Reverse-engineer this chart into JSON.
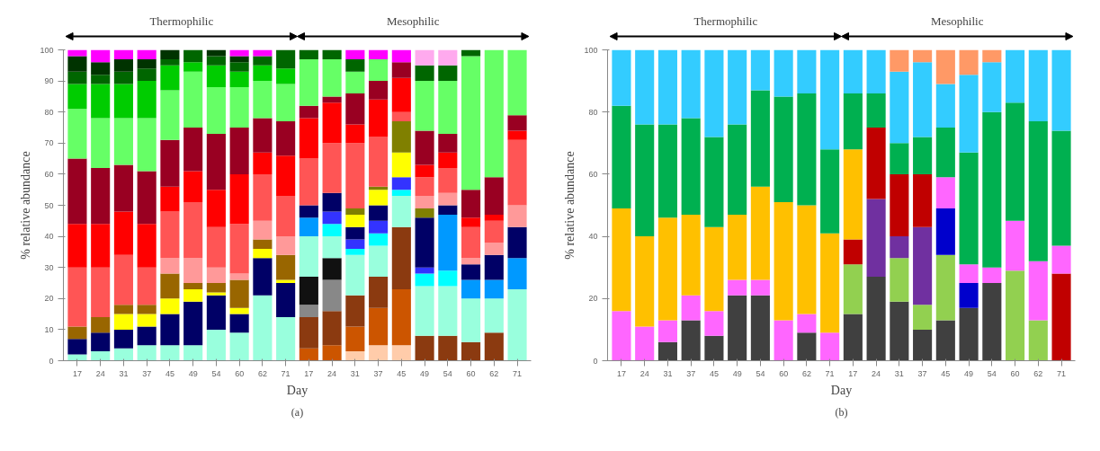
{
  "chart_data": [
    {
      "type": "bar",
      "stacked": true,
      "title": "(a)",
      "xlabel": "Day",
      "ylabel": "% relative abundance",
      "annotations": [
        "Thermophilic",
        "Mesophilic"
      ],
      "categories": [
        "17",
        "24",
        "31",
        "37",
        "45",
        "49",
        "54",
        "60",
        "62",
        "71",
        "17",
        "24",
        "31",
        "37",
        "45",
        "49",
        "54",
        "60",
        "62",
        "71"
      ],
      "ylim": [
        0,
        100
      ],
      "yticks": [
        0,
        10,
        20,
        30,
        40,
        50,
        60,
        70,
        80,
        90,
        100
      ],
      "series": [
        {
          "color": "#ffccaa",
          "values": [
            0,
            0,
            0,
            0,
            0,
            0,
            0,
            0,
            0,
            0,
            0,
            0,
            3,
            5,
            5,
            0,
            0,
            0,
            0,
            0
          ]
        },
        {
          "color": "#cc5500",
          "values": [
            0,
            0,
            0,
            0,
            0,
            0,
            0,
            0,
            0,
            0,
            4,
            5,
            8,
            12,
            18,
            0,
            0,
            0,
            0,
            0
          ]
        },
        {
          "color": "#8b3a10",
          "values": [
            0,
            0,
            0,
            0,
            0,
            0,
            0,
            0,
            0,
            0,
            10,
            11,
            10,
            10,
            20,
            8,
            8,
            6,
            9,
            0
          ]
        },
        {
          "color": "#888888",
          "values": [
            0,
            0,
            0,
            0,
            0,
            0,
            0,
            0,
            0,
            0,
            4,
            10,
            0,
            0,
            0,
            0,
            0,
            0,
            0,
            0
          ]
        },
        {
          "color": "#111111",
          "values": [
            0,
            0,
            0,
            0,
            0,
            0,
            0,
            0,
            0,
            0,
            9,
            7,
            0,
            0,
            0,
            0,
            0,
            0,
            0,
            0
          ]
        },
        {
          "color": "#99ffdd",
          "values": [
            2,
            3,
            4,
            5,
            5,
            5,
            10,
            9,
            21,
            14,
            13,
            7,
            13,
            10,
            10,
            16,
            16,
            14,
            11,
            23
          ]
        },
        {
          "color": "#00ffff",
          "values": [
            0,
            0,
            0,
            0,
            0,
            0,
            0,
            0,
            0,
            0,
            0,
            4,
            2,
            4,
            2,
            4,
            5,
            0,
            0,
            0
          ]
        },
        {
          "color": "#0099ff",
          "values": [
            0,
            0,
            0,
            0,
            0,
            0,
            0,
            0,
            0,
            0,
            6,
            0,
            0,
            0,
            0,
            0,
            18,
            6,
            6,
            10
          ]
        },
        {
          "color": "#3333ff",
          "values": [
            0,
            0,
            0,
            0,
            0,
            0,
            0,
            0,
            0,
            0,
            0,
            4,
            3,
            4,
            4,
            2,
            0,
            0,
            0,
            0
          ]
        },
        {
          "color": "#000066",
          "values": [
            5,
            6,
            6,
            6,
            10,
            14,
            11,
            6,
            12,
            11,
            4,
            6,
            4,
            5,
            0,
            16,
            3,
            5,
            8,
            10
          ]
        },
        {
          "color": "#ffff00",
          "values": [
            0,
            0,
            5,
            4,
            5,
            4,
            1,
            2,
            3,
            1,
            0,
            0,
            4,
            5,
            8,
            0,
            0,
            0,
            0,
            0
          ]
        },
        {
          "color": "#808000",
          "values": [
            0,
            0,
            0,
            0,
            0,
            0,
            0,
            0,
            0,
            0,
            0,
            0,
            2,
            1,
            10,
            3,
            0,
            0,
            0,
            0
          ]
        },
        {
          "color": "#996600",
          "values": [
            4,
            5,
            3,
            3,
            8,
            2,
            3,
            9,
            3,
            8,
            0,
            0,
            0,
            0,
            0,
            0,
            0,
            0,
            0,
            0
          ]
        },
        {
          "color": "#ff9999",
          "values": [
            0,
            0,
            0,
            0,
            5,
            8,
            5,
            2,
            6,
            6,
            0,
            0,
            0,
            0,
            0,
            4,
            4,
            2,
            4,
            7
          ]
        },
        {
          "color": "#ff5555",
          "values": [
            19,
            16,
            16,
            12,
            15,
            18,
            13,
            16,
            15,
            13,
            15,
            16,
            21,
            16,
            3,
            6,
            8,
            10,
            7,
            21
          ]
        },
        {
          "color": "#ff0000",
          "values": [
            14,
            14,
            14,
            14,
            8,
            10,
            12,
            16,
            7,
            13,
            13,
            13,
            6,
            12,
            11,
            4,
            5,
            3,
            2,
            3
          ]
        },
        {
          "color": "#990022",
          "values": [
            21,
            18,
            15,
            17,
            15,
            14,
            18,
            15,
            11,
            11,
            4,
            2,
            10,
            6,
            5,
            11,
            6,
            9,
            12,
            5
          ]
        },
        {
          "color": "#66ff66",
          "values": [
            16,
            16,
            15,
            17,
            16,
            18,
            15,
            13,
            12,
            12,
            15,
            12,
            7,
            7,
            0,
            16,
            17,
            43,
            41,
            21
          ]
        },
        {
          "color": "#00cc00",
          "values": [
            8,
            11,
            11,
            12,
            8,
            3,
            7,
            5,
            5,
            5,
            0,
            0,
            0,
            0,
            0,
            0,
            0,
            0,
            0,
            0
          ]
        },
        {
          "color": "#006600",
          "values": [
            4,
            3,
            4,
            4,
            2,
            4,
            3,
            3,
            3,
            6,
            3,
            3,
            4,
            0,
            0,
            5,
            5,
            2,
            0,
            0
          ]
        },
        {
          "color": "#003300",
          "values": [
            5,
            4,
            4,
            3,
            3,
            0,
            2,
            2,
            0,
            0,
            0,
            0,
            0,
            0,
            0,
            0,
            0,
            0,
            0,
            0
          ]
        },
        {
          "color": "#ffaaee",
          "values": [
            0,
            0,
            0,
            0,
            0,
            0,
            0,
            0,
            0,
            0,
            0,
            0,
            0,
            0,
            0,
            5,
            5,
            0,
            0,
            0
          ]
        },
        {
          "color": "#ff00ff",
          "values": [
            2,
            4,
            3,
            3,
            0,
            0,
            0,
            2,
            2,
            0,
            0,
            0,
            3,
            3,
            4,
            0,
            0,
            0,
            0,
            0
          ]
        }
      ]
    },
    {
      "type": "bar",
      "stacked": true,
      "title": "(b)",
      "xlabel": "Day",
      "ylabel": "% relative abundance",
      "annotations": [
        "Thermophilic",
        "Mesophilic"
      ],
      "categories": [
        "17",
        "24",
        "31",
        "37",
        "45",
        "49",
        "54",
        "60",
        "62",
        "71",
        "17",
        "24",
        "31",
        "37",
        "45",
        "49",
        "54",
        "60",
        "62",
        "71"
      ],
      "ylim": [
        0,
        100
      ],
      "yticks": [
        0,
        20,
        40,
        60,
        80,
        100
      ],
      "series": [
        {
          "color": "#404040",
          "values": [
            0,
            0,
            6,
            13,
            8,
            21,
            21,
            0,
            9,
            0,
            15,
            27,
            19,
            10,
            13,
            17,
            25,
            0,
            0,
            0
          ]
        },
        {
          "color": "#92d050",
          "values": [
            0,
            0,
            0,
            0,
            0,
            0,
            0,
            0,
            0,
            0,
            16,
            0,
            14,
            8,
            21,
            0,
            0,
            29,
            13,
            0
          ]
        },
        {
          "color": "#7030a0",
          "values": [
            0,
            0,
            0,
            0,
            0,
            0,
            0,
            0,
            0,
            0,
            0,
            25,
            7,
            25,
            0,
            0,
            0,
            0,
            0,
            0
          ]
        },
        {
          "color": "#c00000",
          "values": [
            0,
            0,
            0,
            0,
            0,
            0,
            0,
            0,
            0,
            0,
            8,
            23,
            20,
            17,
            0,
            0,
            0,
            0,
            0,
            28
          ]
        },
        {
          "color": "#0000cc",
          "values": [
            0,
            0,
            0,
            0,
            0,
            0,
            0,
            0,
            0,
            0,
            0,
            0,
            0,
            0,
            15,
            8,
            0,
            0,
            0,
            0
          ]
        },
        {
          "color": "#ff66ff",
          "values": [
            16,
            11,
            7,
            8,
            8,
            5,
            5,
            13,
            6,
            9,
            0,
            0,
            0,
            0,
            10,
            6,
            5,
            16,
            19,
            9
          ]
        },
        {
          "color": "#ffc000",
          "values": [
            33,
            29,
            33,
            26,
            27,
            21,
            30,
            38,
            35,
            32,
            29,
            0,
            0,
            0,
            0,
            0,
            0,
            0,
            0,
            0
          ]
        },
        {
          "color": "#00b050",
          "values": [
            33,
            36,
            30,
            31,
            29,
            29,
            31,
            34,
            36,
            27,
            18,
            11,
            10,
            12,
            16,
            36,
            50,
            38,
            45,
            37
          ]
        },
        {
          "color": "#33ccff",
          "values": [
            18,
            24,
            24,
            22,
            28,
            24,
            13,
            15,
            14,
            32,
            14,
            14,
            23,
            24,
            14,
            25,
            16,
            17,
            23,
            26
          ]
        },
        {
          "color": "#ff9966",
          "values": [
            0,
            0,
            0,
            0,
            0,
            0,
            0,
            0,
            0,
            0,
            0,
            0,
            7,
            4,
            11,
            8,
            4,
            0,
            0,
            0
          ]
        }
      ]
    }
  ]
}
